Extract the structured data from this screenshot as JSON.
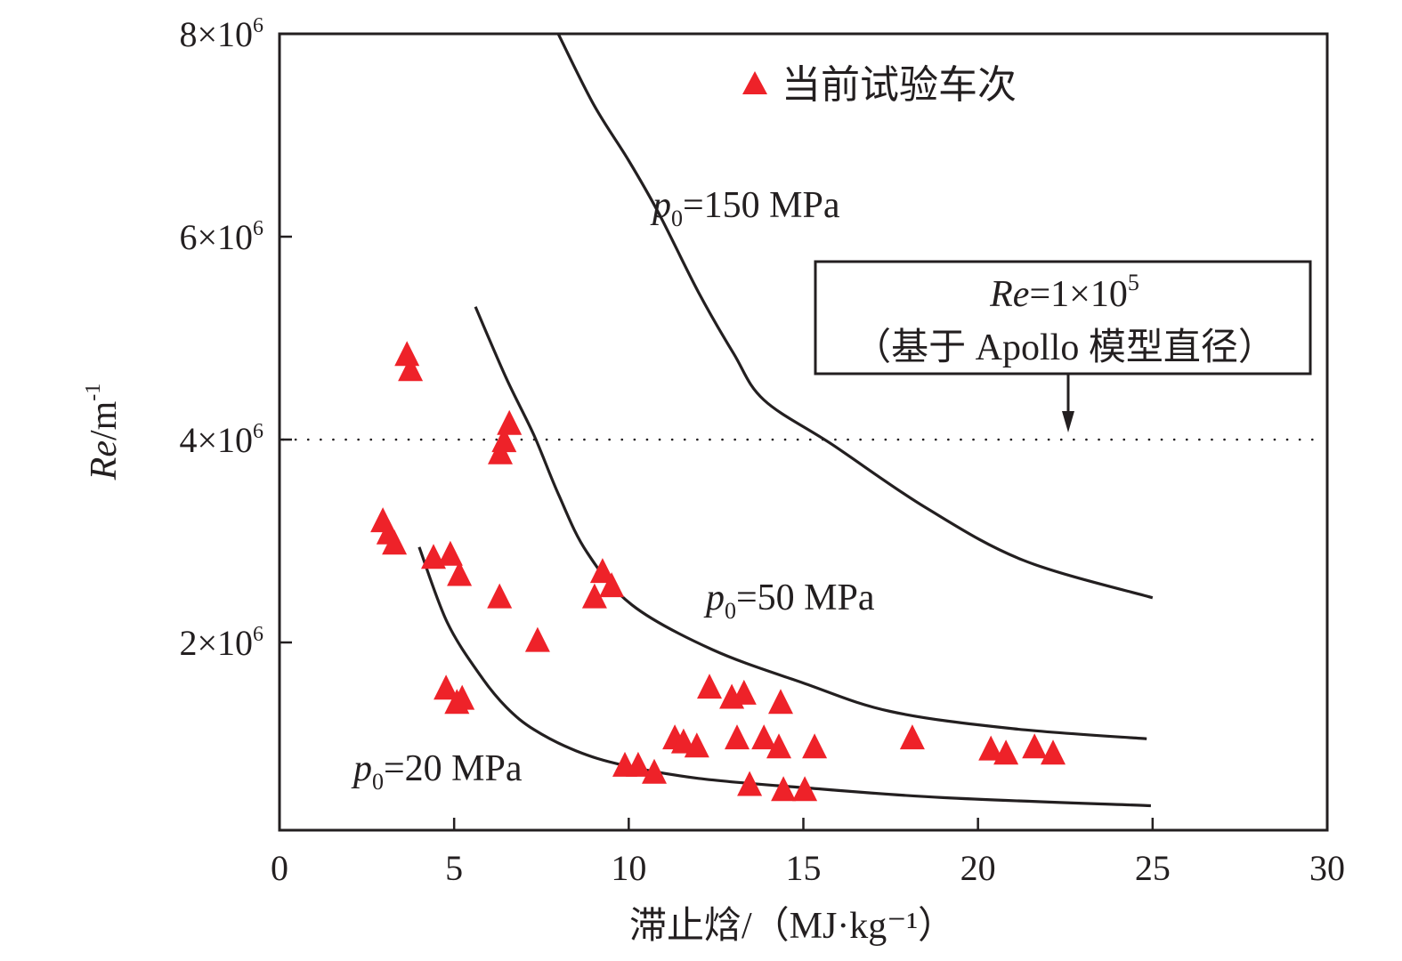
{
  "chart_data": {
    "type": "scatter",
    "title": "",
    "xlabel": "滞止焓/（MJ·kg⁻¹）",
    "ylabel_main": "Re",
    "ylabel_unit": "/m",
    "ylabel_sup": "-1",
    "xlim": [
      0,
      30
    ],
    "ylim": [
      0.15,
      8.0
    ],
    "y_scale_note": "values in units of 10^6 m^-1",
    "grid": false,
    "x_ticks": [
      0,
      5,
      10,
      15,
      20,
      25,
      30
    ],
    "x_tick_labels": [
      "0",
      "5",
      "10",
      "15",
      "20",
      "25",
      "30"
    ],
    "y_ticks": [
      2,
      4,
      6,
      8
    ],
    "y_tick_labels": [
      {
        "mant": "2",
        "base": "×10",
        "exp": "6"
      },
      {
        "mant": "4",
        "base": "×10",
        "exp": "6"
      },
      {
        "mant": "6",
        "base": "×10",
        "exp": "6"
      },
      {
        "mant": "8",
        "base": "×10",
        "exp": "6"
      }
    ],
    "legend": {
      "position": "top-center",
      "entries": [
        {
          "label": "当前试验车次",
          "marker": "triangle",
          "color": "#ee2229"
        }
      ]
    },
    "series": [
      {
        "name": "当前试验车次",
        "kind": "scatter",
        "marker": "triangle",
        "color": "#ee2229",
        "points": [
          [
            3.65,
            4.82
          ],
          [
            3.75,
            4.67
          ],
          [
            6.58,
            4.14
          ],
          [
            6.43,
            3.97
          ],
          [
            6.32,
            3.85
          ],
          [
            2.96,
            3.18
          ],
          [
            3.13,
            3.06
          ],
          [
            3.29,
            2.96
          ],
          [
            4.41,
            2.82
          ],
          [
            4.89,
            2.85
          ],
          [
            5.15,
            2.65
          ],
          [
            6.3,
            2.43
          ],
          [
            7.39,
            2.0
          ],
          [
            4.77,
            1.53
          ],
          [
            5.08,
            1.39
          ],
          [
            5.23,
            1.43
          ],
          [
            9.25,
            2.68
          ],
          [
            9.51,
            2.54
          ],
          [
            9.02,
            2.43
          ],
          [
            9.89,
            0.77
          ],
          [
            10.27,
            0.77
          ],
          [
            10.73,
            0.7
          ],
          [
            11.32,
            1.04
          ],
          [
            11.57,
            1.0
          ],
          [
            11.95,
            0.96
          ],
          [
            12.31,
            1.54
          ],
          [
            12.95,
            1.44
          ],
          [
            13.3,
            1.48
          ],
          [
            14.35,
            1.39
          ],
          [
            13.1,
            1.04
          ],
          [
            13.87,
            1.04
          ],
          [
            14.3,
            0.95
          ],
          [
            15.32,
            0.95
          ],
          [
            13.46,
            0.58
          ],
          [
            14.43,
            0.53
          ],
          [
            15.04,
            0.53
          ],
          [
            18.12,
            1.04
          ],
          [
            20.37,
            0.93
          ],
          [
            20.8,
            0.89
          ],
          [
            21.62,
            0.95
          ],
          [
            22.15,
            0.89
          ]
        ]
      },
      {
        "name": "p0=150 MPa",
        "kind": "line",
        "color": "#231f20",
        "points": [
          [
            7.98,
            8.0
          ],
          [
            9.0,
            7.3
          ],
          [
            10.0,
            6.75
          ],
          [
            10.86,
            6.23
          ],
          [
            12.0,
            5.45
          ],
          [
            13.0,
            4.85
          ],
          [
            13.87,
            4.39
          ],
          [
            15.83,
            3.95
          ],
          [
            18.5,
            3.33
          ],
          [
            21.3,
            2.81
          ],
          [
            25.0,
            2.44
          ]
        ]
      },
      {
        "name": "p0=50 MPa",
        "kind": "line",
        "color": "#231f20",
        "points": [
          [
            5.61,
            5.31
          ],
          [
            6.5,
            4.6
          ],
          [
            7.29,
            4.04
          ],
          [
            8.0,
            3.45
          ],
          [
            8.8,
            2.89
          ],
          [
            10.09,
            2.37
          ],
          [
            12.39,
            1.93
          ],
          [
            15.0,
            1.6
          ],
          [
            17.49,
            1.32
          ],
          [
            21.0,
            1.15
          ],
          [
            24.83,
            1.05
          ]
        ]
      },
      {
        "name": "p0=20 MPa",
        "kind": "line",
        "color": "#231f20",
        "points": [
          [
            4.0,
            2.94
          ],
          [
            4.8,
            2.2
          ],
          [
            5.76,
            1.67
          ],
          [
            6.5,
            1.36
          ],
          [
            7.29,
            1.14
          ],
          [
            8.5,
            0.93
          ],
          [
            9.84,
            0.79
          ],
          [
            12.0,
            0.66
          ],
          [
            14.94,
            0.57
          ],
          [
            19.0,
            0.47
          ],
          [
            24.95,
            0.39
          ]
        ]
      }
    ],
    "reference_line": {
      "y": 4.0,
      "style": "dotted",
      "x_range": [
        0,
        30
      ]
    },
    "annotations": {
      "curve_labels": [
        {
          "p": "p",
          "sub": "0",
          "text": "=150 MPa",
          "at": [
            10.5,
            6.55
          ]
        },
        {
          "p": "p",
          "sub": "0",
          "text": "=50 MPa",
          "at": [
            12.3,
            2.6
          ]
        },
        {
          "p": "p",
          "sub": "0",
          "text": "=20 MPa",
          "at": [
            2.1,
            0.62
          ]
        }
      ],
      "reynolds_box": {
        "line1_re": "Re",
        "line1_rest": "=1×10",
        "line1_exp": "5",
        "line2": "（基于 Apollo 模型直径）",
        "arrow_to": [
          22.5,
          4.0
        ]
      }
    }
  }
}
